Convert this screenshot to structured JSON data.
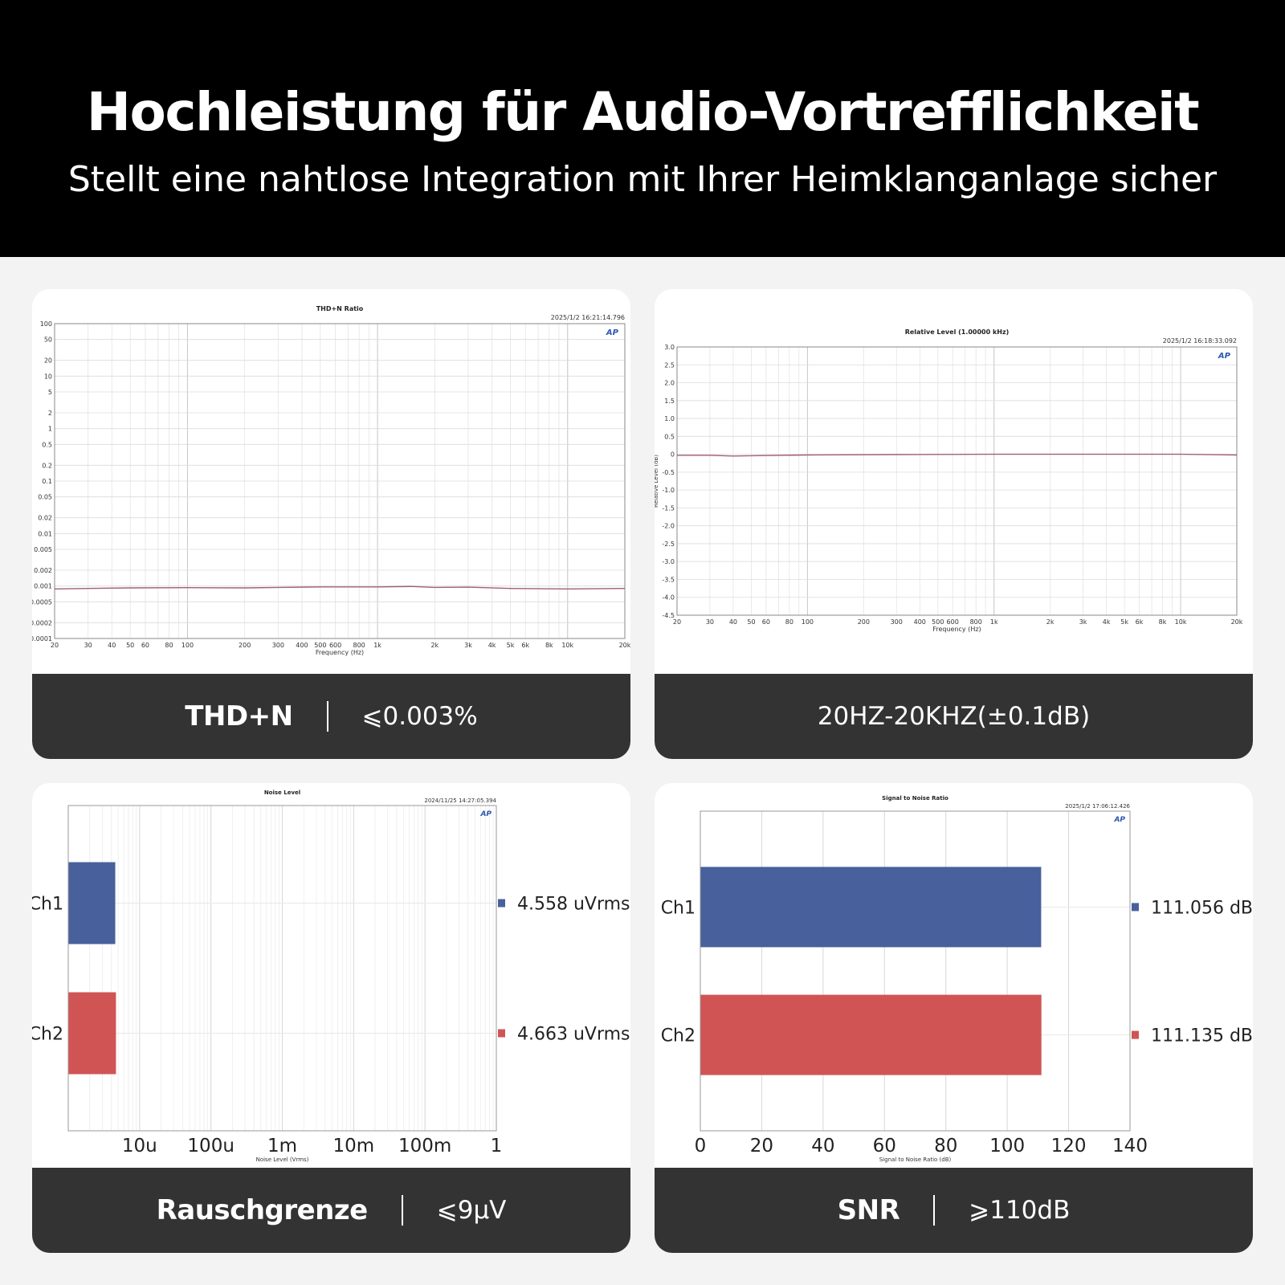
{
  "header": {
    "title": "Hochleistung für Audio-Vortrefflichkeit",
    "subtitle": "Stellt eine nahtlose Integration mit Ihrer Heimklanganlage sicher"
  },
  "colors": {
    "ch1": "#48609c",
    "ch2": "#d15454",
    "footer": "#333333",
    "trace": "#a06070"
  },
  "cards": [
    {
      "label_name": "THD+N",
      "label_value": "⩽0.003%"
    },
    {
      "label_single": "20HZ-20KHZ(±0.1dB)"
    },
    {
      "label_name": "Rauschgrenze",
      "label_value": "⩽9μV"
    },
    {
      "label_name": "SNR",
      "label_value": "⩾110dB"
    }
  ],
  "chart_data": [
    {
      "type": "line",
      "title": "THD+N Ratio",
      "timestamp": "2025/1/2 16:21:14.796",
      "logo": "AP",
      "xlabel": "Frequency (Hz)",
      "ylabel": "",
      "x_scale": "log",
      "y_scale": "log",
      "xlim": [
        20,
        20000
      ],
      "ylim": [
        0.0001,
        100
      ],
      "x_ticks": [
        20,
        30,
        40,
        50,
        60,
        80,
        100,
        200,
        300,
        400,
        500,
        600,
        800,
        1000,
        2000,
        3000,
        4000,
        5000,
        6000,
        8000,
        10000,
        20000
      ],
      "x_tick_labels": [
        "20",
        "30",
        "40",
        "50",
        "60",
        "80",
        "100",
        "200",
        "300",
        "400",
        "500",
        "600",
        "800",
        "1k",
        "2k",
        "3k",
        "4k",
        "5k",
        "6k",
        "8k",
        "10k",
        "20k"
      ],
      "y_ticks": [
        100,
        50,
        20,
        10,
        5,
        2,
        1,
        0.5,
        0.2,
        0.1,
        0.05,
        0.02,
        0.01,
        0.005,
        0.002,
        0.001,
        0.0005,
        0.0002,
        0.0001
      ],
      "y_tick_labels": [
        "100",
        "50",
        "20",
        "10",
        "5",
        "2",
        "1",
        "0.5",
        "0.2",
        "0.1",
        "0.05",
        "0.02",
        "0.01",
        "0.005",
        "0.002",
        "0.001",
        "0.0005",
        "0.0002",
        "0.0001"
      ],
      "grid": true,
      "series": [
        {
          "x": [
            20,
            30,
            50,
            100,
            200,
            300,
            500,
            1000,
            1500,
            2000,
            3000,
            5000,
            10000,
            20000
          ],
          "y": [
            0.00088,
            0.0009,
            0.00092,
            0.00093,
            0.00092,
            0.00094,
            0.00096,
            0.00096,
            0.00098,
            0.00094,
            0.00095,
            0.0009,
            0.00088,
            0.0009
          ]
        }
      ]
    },
    {
      "type": "line",
      "title": "Relative Level (1.00000 kHz)",
      "timestamp": "2025/1/2 16:18:33.092",
      "logo": "AP",
      "xlabel": "Frequency (Hz)",
      "ylabel": "Relative Level (dB)",
      "x_scale": "log",
      "xlim": [
        20,
        20000
      ],
      "ylim": [
        -4.5,
        3.0
      ],
      "x_ticks": [
        20,
        30,
        40,
        50,
        60,
        80,
        100,
        200,
        300,
        400,
        500,
        600,
        800,
        1000,
        2000,
        3000,
        4000,
        5000,
        6000,
        8000,
        10000,
        20000
      ],
      "x_tick_labels": [
        "20",
        "30",
        "40",
        "50",
        "60",
        "80",
        "100",
        "200",
        "300",
        "400",
        "500",
        "600",
        "800",
        "1k",
        "2k",
        "3k",
        "4k",
        "5k",
        "6k",
        "8k",
        "10k",
        "20k"
      ],
      "y_ticks": [
        3.0,
        2.5,
        2.0,
        1.5,
        1.0,
        0.5,
        0,
        -0.5,
        -1.0,
        -1.5,
        -2.0,
        -2.5,
        -3.0,
        -3.5,
        -4.0,
        -4.5
      ],
      "y_tick_labels": [
        "3.0",
        "2.5",
        "2.0",
        "1.5",
        "1.0",
        "0.5",
        "0",
        "-0.5",
        "-1.0",
        "-1.5",
        "-2.0",
        "-2.5",
        "-3.0",
        "-3.5",
        "-4.0",
        "-4.5"
      ],
      "grid": true,
      "series": [
        {
          "x": [
            20,
            30,
            40,
            50,
            100,
            300,
            1000,
            5000,
            10000,
            20000
          ],
          "y": [
            -0.03,
            -0.03,
            -0.05,
            -0.04,
            -0.02,
            -0.01,
            0.0,
            0.0,
            0.0,
            -0.02
          ]
        }
      ]
    },
    {
      "type": "bar",
      "orientation": "horizontal",
      "title": "Noise Level",
      "timestamp": "2024/11/25 14:27:05.394",
      "logo": "AP",
      "xlabel": "Noise Level (Vrms)",
      "x_scale": "log",
      "xlim": [
        1e-06,
        1
      ],
      "x_ticks": [
        1e-05,
        0.0001,
        0.001,
        0.01,
        0.1,
        1
      ],
      "x_tick_labels": [
        "10u",
        "100u",
        "1m",
        "10m",
        "100m",
        "1"
      ],
      "categories": [
        "Ch1",
        "Ch2"
      ],
      "values_uVrms": [
        4.558,
        4.663
      ],
      "value_labels": [
        "4.558  uVrms",
        "4.663  uVrms"
      ],
      "grid": true
    },
    {
      "type": "bar",
      "orientation": "horizontal",
      "title": "Signal to Noise Ratio",
      "timestamp": "2025/1/2 17:06:12.426",
      "logo": "AP",
      "xlabel": "Signal to Noise Ratio (dB)",
      "xlim": [
        0,
        140
      ],
      "x_ticks": [
        0,
        20,
        40,
        60,
        80,
        100,
        120,
        140
      ],
      "x_tick_labels": [
        "0",
        "20",
        "40",
        "60",
        "80",
        "100",
        "120",
        "140"
      ],
      "categories": [
        "Ch1",
        "Ch2"
      ],
      "values": [
        111.056,
        111.135
      ],
      "value_labels": [
        "111.056  dB",
        "111.135  dB"
      ],
      "grid": true
    }
  ]
}
